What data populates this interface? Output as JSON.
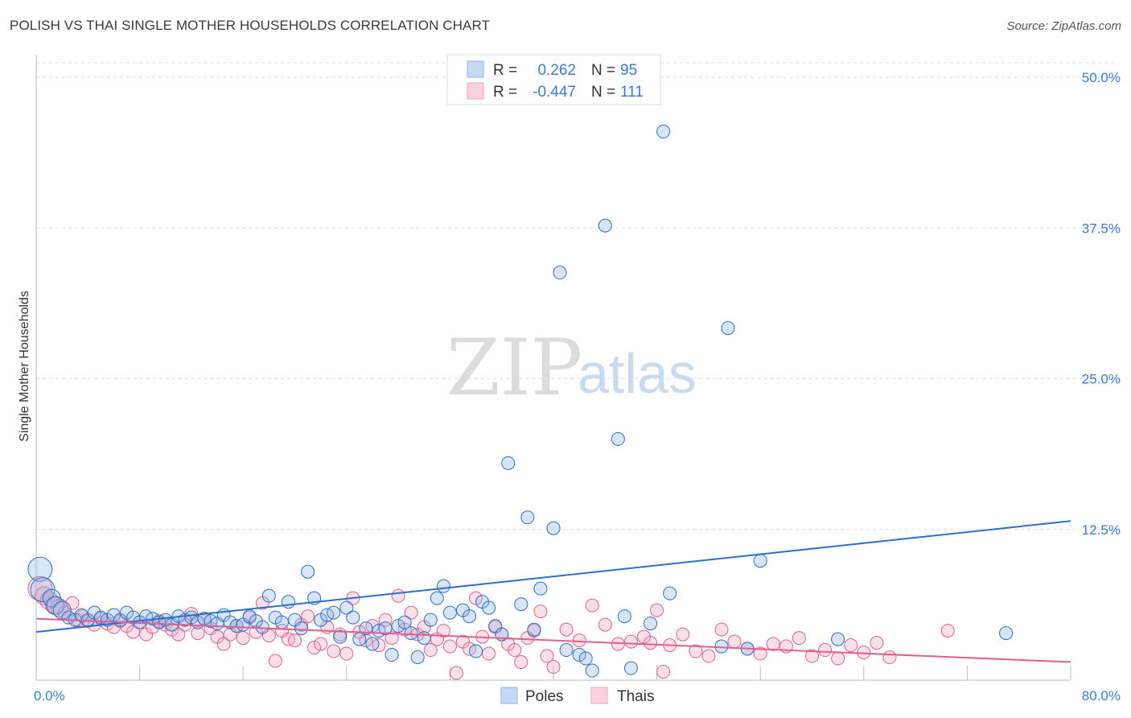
{
  "title": "POLISH VS THAI SINGLE MOTHER HOUSEHOLDS CORRELATION CHART",
  "source": "Source: ZipAtlas.com",
  "watermark": {
    "zip": "ZIP",
    "atlas": "atlas"
  },
  "colors": {
    "poles": "#8db4e8",
    "poles_line": "#2a6fce",
    "thais": "#f4a7c0",
    "thais_line": "#e0608a",
    "tick": "#3a7bd5",
    "grid": "#dddddd"
  },
  "legend": {
    "poles": {
      "r_label": "R =",
      "r_value": "0.262",
      "n_label": "N =",
      "n_value": "95"
    },
    "thais": {
      "r_label": "R =",
      "r_value": "-0.447",
      "n_label": "N =",
      "n_value": "111"
    }
  },
  "chart_data": {
    "type": "scatter",
    "xlabel": "",
    "ylabel": "Single Mother Households",
    "xlim": [
      0,
      80
    ],
    "ylim": [
      0,
      50
    ],
    "x_tick_labels": [
      {
        "value": 0,
        "label": "0.0%"
      },
      {
        "value": 80,
        "label": "80.0%"
      }
    ],
    "y_tick_labels": [
      {
        "value": 12.5,
        "label": "12.5%"
      },
      {
        "value": 25,
        "label": "25.0%"
      },
      {
        "value": 37.5,
        "label": "37.5%"
      },
      {
        "value": 50,
        "label": "50.0%"
      }
    ],
    "grid": "horizontal dashed",
    "legend_position": "top-center",
    "series": [
      {
        "name": "Poles",
        "trendline": [
          [
            0,
            4.0
          ],
          [
            80,
            13.2
          ]
        ],
        "points": [
          [
            0.3,
            9.2,
            3
          ],
          [
            0.5,
            7.5,
            3
          ],
          [
            1.2,
            6.8,
            2
          ],
          [
            1.5,
            6.2,
            2
          ],
          [
            2.0,
            5.8,
            2
          ],
          [
            2.5,
            5.2,
            1
          ],
          [
            3.0,
            5.0,
            1
          ],
          [
            3.5,
            5.4,
            1
          ],
          [
            4.0,
            5.0,
            1
          ],
          [
            4.5,
            5.6,
            1
          ],
          [
            5.0,
            5.2,
            1
          ],
          [
            5.5,
            5.0,
            1
          ],
          [
            6.0,
            5.4,
            1
          ],
          [
            6.5,
            5.0,
            1
          ],
          [
            7.0,
            5.6,
            1
          ],
          [
            7.5,
            5.2,
            1
          ],
          [
            8.0,
            4.8,
            1
          ],
          [
            8.5,
            5.3,
            1
          ],
          [
            9.0,
            5.1,
            1
          ],
          [
            9.5,
            4.8,
            1
          ],
          [
            10.0,
            5.0,
            1
          ],
          [
            10.5,
            4.6,
            1
          ],
          [
            11.0,
            5.3,
            1
          ],
          [
            11.5,
            5.0,
            1
          ],
          [
            12.0,
            5.2,
            1
          ],
          [
            12.5,
            4.8,
            1
          ],
          [
            13.0,
            5.1,
            1
          ],
          [
            13.5,
            4.9,
            1
          ],
          [
            14.0,
            4.7,
            1
          ],
          [
            14.5,
            5.4,
            1
          ],
          [
            15.0,
            4.8,
            1
          ],
          [
            15.5,
            4.5,
            1
          ],
          [
            16.0,
            4.6,
            1
          ],
          [
            16.5,
            5.3,
            1
          ],
          [
            17.0,
            4.9,
            1
          ],
          [
            17.5,
            4.4,
            1
          ],
          [
            18.0,
            7.0,
            1
          ],
          [
            18.5,
            5.2,
            1
          ],
          [
            19.0,
            4.8,
            1
          ],
          [
            19.5,
            6.5,
            1
          ],
          [
            20.0,
            5.0,
            1
          ],
          [
            20.5,
            4.3,
            1
          ],
          [
            21.0,
            9.0,
            1
          ],
          [
            21.5,
            6.8,
            1
          ],
          [
            22.0,
            5.0,
            1
          ],
          [
            22.5,
            5.4,
            1
          ],
          [
            23.0,
            5.6,
            1
          ],
          [
            23.5,
            3.6,
            1
          ],
          [
            24.0,
            6.0,
            1
          ],
          [
            24.5,
            5.2,
            1
          ],
          [
            25.0,
            3.4,
            1
          ],
          [
            25.5,
            4.3,
            1
          ],
          [
            26.0,
            3.0,
            1
          ],
          [
            26.5,
            4.1,
            1
          ],
          [
            27.0,
            4.3,
            1
          ],
          [
            27.5,
            2.1,
            1
          ],
          [
            28.0,
            4.5,
            1
          ],
          [
            28.5,
            4.8,
            1
          ],
          [
            29.0,
            3.9,
            1
          ],
          [
            29.5,
            1.9,
            1
          ],
          [
            30.0,
            3.5,
            1
          ],
          [
            30.5,
            5.0,
            1
          ],
          [
            31.0,
            6.8,
            1
          ],
          [
            31.5,
            7.8,
            1
          ],
          [
            32.0,
            5.6,
            1
          ],
          [
            33.0,
            5.8,
            1
          ],
          [
            33.5,
            5.3,
            1
          ],
          [
            34.0,
            2.4,
            1
          ],
          [
            34.5,
            6.5,
            1
          ],
          [
            35.0,
            6.0,
            1
          ],
          [
            35.5,
            4.5,
            1
          ],
          [
            36.0,
            3.8,
            1
          ],
          [
            36.5,
            18.0,
            1
          ],
          [
            37.5,
            6.3,
            1
          ],
          [
            38.0,
            13.5,
            1
          ],
          [
            38.5,
            4.2,
            1
          ],
          [
            39.0,
            7.6,
            1
          ],
          [
            40.0,
            12.6,
            1
          ],
          [
            40.5,
            33.8,
            1
          ],
          [
            41.0,
            2.5,
            1
          ],
          [
            42.0,
            2.1,
            1
          ],
          [
            42.5,
            1.8,
            1
          ],
          [
            43.0,
            0.8,
            1
          ],
          [
            44.0,
            37.7,
            1
          ],
          [
            45.0,
            20.0,
            1
          ],
          [
            45.5,
            5.3,
            1
          ],
          [
            46.0,
            1.0,
            1
          ],
          [
            47.5,
            4.7,
            1
          ],
          [
            48.5,
            45.5,
            1
          ],
          [
            49.0,
            7.2,
            1
          ],
          [
            53.5,
            29.2,
            1
          ],
          [
            53.0,
            2.8,
            1
          ],
          [
            55.0,
            2.6,
            1
          ],
          [
            56.0,
            9.9,
            1
          ],
          [
            62.0,
            3.4,
            1
          ],
          [
            75.0,
            3.9,
            1
          ]
        ]
      },
      {
        "name": "Thais",
        "trendline": [
          [
            0,
            5.1
          ],
          [
            80,
            1.5
          ]
        ],
        "points": [
          [
            0.3,
            7.6,
            3
          ],
          [
            0.6,
            7.0,
            2
          ],
          [
            1.0,
            6.6,
            2
          ],
          [
            1.4,
            6.2,
            2
          ],
          [
            1.8,
            6.0,
            2
          ],
          [
            2.2,
            5.6,
            1
          ],
          [
            2.8,
            6.4,
            1
          ],
          [
            3.2,
            5.0,
            1
          ],
          [
            3.6,
            5.3,
            1
          ],
          [
            4.0,
            4.9,
            1
          ],
          [
            4.5,
            4.6,
            1
          ],
          [
            5.0,
            5.1,
            1
          ],
          [
            5.5,
            4.7,
            1
          ],
          [
            6.0,
            4.4,
            1
          ],
          [
            6.5,
            4.9,
            1
          ],
          [
            7.0,
            4.5,
            1
          ],
          [
            7.5,
            4.0,
            1
          ],
          [
            8.0,
            4.8,
            1
          ],
          [
            8.5,
            3.8,
            1
          ],
          [
            9.0,
            4.4,
            1
          ],
          [
            9.5,
            4.9,
            1
          ],
          [
            10.0,
            4.6,
            1
          ],
          [
            10.5,
            4.2,
            1
          ],
          [
            11.0,
            3.8,
            1
          ],
          [
            11.5,
            4.6,
            1
          ],
          [
            12.0,
            5.5,
            1
          ],
          [
            12.5,
            3.9,
            1
          ],
          [
            13.0,
            5.1,
            1
          ],
          [
            13.5,
            4.3,
            1
          ],
          [
            14.0,
            3.6,
            1
          ],
          [
            14.5,
            3.0,
            1
          ],
          [
            15.0,
            3.8,
            1
          ],
          [
            15.5,
            4.5,
            1
          ],
          [
            16.0,
            3.5,
            1
          ],
          [
            16.5,
            5.2,
            1
          ],
          [
            17.0,
            4.0,
            1
          ],
          [
            17.5,
            6.4,
            1
          ],
          [
            18.0,
            3.7,
            1
          ],
          [
            18.5,
            1.6,
            1
          ],
          [
            19.0,
            4.1,
            1
          ],
          [
            19.5,
            3.4,
            1
          ],
          [
            20.0,
            3.3,
            1
          ],
          [
            20.5,
            4.6,
            1
          ],
          [
            21.0,
            5.3,
            1
          ],
          [
            21.5,
            2.7,
            1
          ],
          [
            22.0,
            3.0,
            1
          ],
          [
            22.5,
            4.4,
            1
          ],
          [
            23.0,
            2.4,
            1
          ],
          [
            23.5,
            3.8,
            1
          ],
          [
            24.0,
            2.2,
            1
          ],
          [
            24.5,
            6.8,
            1
          ],
          [
            25.0,
            4.0,
            1
          ],
          [
            25.5,
            3.3,
            1
          ],
          [
            26.0,
            4.5,
            1
          ],
          [
            26.5,
            2.9,
            1
          ],
          [
            27.0,
            5.0,
            1
          ],
          [
            27.5,
            3.5,
            1
          ],
          [
            28.0,
            7.0,
            1
          ],
          [
            28.5,
            4.2,
            1
          ],
          [
            29.0,
            5.6,
            1
          ],
          [
            29.5,
            3.8,
            1
          ],
          [
            30.0,
            4.4,
            1
          ],
          [
            30.5,
            2.5,
            1
          ],
          [
            31.0,
            3.4,
            1
          ],
          [
            31.5,
            4.1,
            1
          ],
          [
            32.0,
            2.8,
            1
          ],
          [
            32.5,
            0.6,
            1
          ],
          [
            33.0,
            3.2,
            1
          ],
          [
            33.5,
            2.6,
            1
          ],
          [
            34.0,
            6.8,
            1
          ],
          [
            34.5,
            3.6,
            1
          ],
          [
            35.0,
            2.2,
            1
          ],
          [
            35.5,
            4.4,
            1
          ],
          [
            36.0,
            3.8,
            1
          ],
          [
            36.5,
            3.0,
            1
          ],
          [
            37.0,
            2.5,
            1
          ],
          [
            37.5,
            1.5,
            1
          ],
          [
            38.0,
            3.5,
            1
          ],
          [
            38.5,
            4.1,
            1
          ],
          [
            39.0,
            5.7,
            1
          ],
          [
            39.5,
            2.0,
            1
          ],
          [
            40.0,
            1.1,
            1
          ],
          [
            41.0,
            4.2,
            1
          ],
          [
            42.0,
            3.3,
            1
          ],
          [
            43.0,
            6.2,
            1
          ],
          [
            44.0,
            4.6,
            1
          ],
          [
            45.0,
            3.0,
            1
          ],
          [
            46.0,
            3.2,
            1
          ],
          [
            47.0,
            3.6,
            1
          ],
          [
            47.5,
            3.1,
            1
          ],
          [
            48.0,
            5.8,
            1
          ],
          [
            48.5,
            0.7,
            1
          ],
          [
            49.0,
            2.9,
            1
          ],
          [
            50.0,
            3.8,
            1
          ],
          [
            51.0,
            2.4,
            1
          ],
          [
            52.0,
            2.0,
            1
          ],
          [
            53.0,
            4.2,
            1
          ],
          [
            54.0,
            3.2,
            1
          ],
          [
            55.0,
            2.6,
            1
          ],
          [
            56.0,
            2.2,
            1
          ],
          [
            57.0,
            3.0,
            1
          ],
          [
            58.0,
            2.8,
            1
          ],
          [
            59.0,
            3.5,
            1
          ],
          [
            60.0,
            2.0,
            1
          ],
          [
            61.0,
            2.5,
            1
          ],
          [
            62.0,
            1.8,
            1
          ],
          [
            63.0,
            2.9,
            1
          ],
          [
            64.0,
            2.3,
            1
          ],
          [
            65.0,
            3.1,
            1
          ],
          [
            66.0,
            1.9,
            1
          ],
          [
            70.5,
            4.1,
            1
          ]
        ]
      }
    ]
  }
}
